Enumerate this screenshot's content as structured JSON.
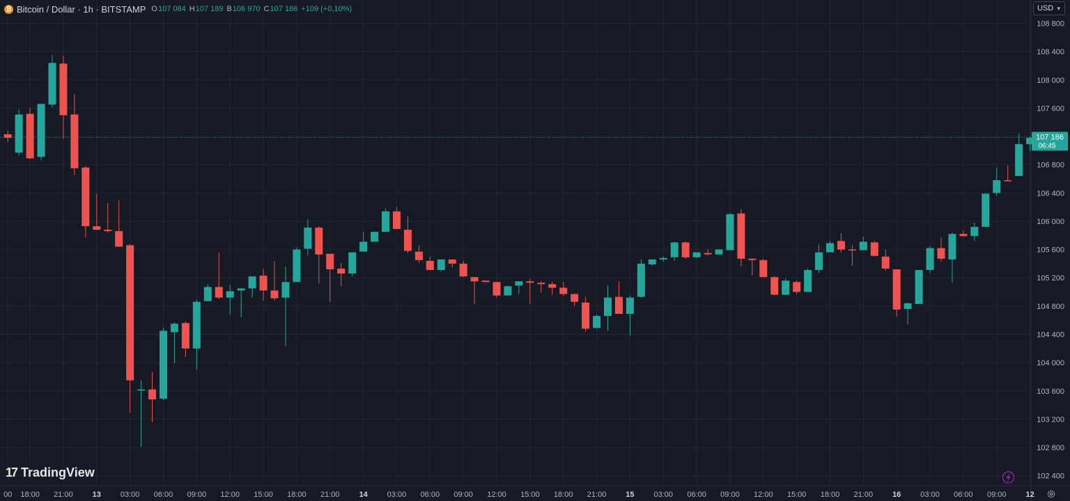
{
  "header": {
    "symbol": "Bitcoin / Dollar · 1h · BITSTAMP",
    "coin_icon": "bitcoin-icon",
    "open_label": "O",
    "open": "107 084",
    "high_label": "H",
    "high": "107 189",
    "low_label": "B",
    "low": "106 970",
    "close_label": "C",
    "close": "107 186",
    "change": "+109 (+0,10%)"
  },
  "currency": {
    "label": "USD",
    "icon": "chevron-down-icon"
  },
  "logo": {
    "mark": "17",
    "text": "TradingView"
  },
  "price_badge": {
    "price": "107 186",
    "countdown": "06:45"
  },
  "icons": {
    "lightning": "lightning-icon",
    "settings": "gear-icon"
  },
  "colors": {
    "background": "#161a25",
    "up": "#26a69a",
    "down": "#ef5350",
    "text": "#b2b5be",
    "grid": "#232733"
  },
  "chart_data": {
    "type": "candlestick",
    "symbol": "Bitcoin / Dollar",
    "interval": "1h",
    "exchange": "BITSTAMP",
    "ylim": [
      102300,
      108900
    ],
    "y_ticks": [
      "102 400",
      "102 800",
      "103 200",
      "103 600",
      "104 000",
      "104 400",
      "104 800",
      "105 200",
      "105 600",
      "106 000",
      "106 400",
      "106 800",
      "107 200",
      "107 600",
      "108 000",
      "108 400",
      "108 800"
    ],
    "x_ticks": [
      {
        "label": "00",
        "i": 0
      },
      {
        "label": "18:00",
        "i": 2
      },
      {
        "label": "21:00",
        "i": 5
      },
      {
        "label": "13",
        "i": 8
      },
      {
        "label": "03:00",
        "i": 11
      },
      {
        "label": "06:00",
        "i": 14
      },
      {
        "label": "09:00",
        "i": 17
      },
      {
        "label": "12:00",
        "i": 20
      },
      {
        "label": "15:00",
        "i": 23
      },
      {
        "label": "18:00",
        "i": 26
      },
      {
        "label": "21:00",
        "i": 29
      },
      {
        "label": "14",
        "i": 32
      },
      {
        "label": "03:00",
        "i": 35
      },
      {
        "label": "06:00",
        "i": 38
      },
      {
        "label": "09:00",
        "i": 41
      },
      {
        "label": "12:00",
        "i": 44
      },
      {
        "label": "15:00",
        "i": 47
      },
      {
        "label": "18:00",
        "i": 50
      },
      {
        "label": "21:00",
        "i": 53
      },
      {
        "label": "15",
        "i": 56
      },
      {
        "label": "03:00",
        "i": 59
      },
      {
        "label": "06:00",
        "i": 62
      },
      {
        "label": "09:00",
        "i": 65
      },
      {
        "label": "12:00",
        "i": 68
      },
      {
        "label": "15:00",
        "i": 71
      },
      {
        "label": "18:00",
        "i": 74
      },
      {
        "label": "21:00",
        "i": 77
      },
      {
        "label": "16",
        "i": 80
      },
      {
        "label": "03:00",
        "i": 83
      },
      {
        "label": "06:00",
        "i": 86
      },
      {
        "label": "09:00",
        "i": 89
      },
      {
        "label": "12",
        "i": 92
      }
    ],
    "last_price": 107186,
    "candles": [
      {
        "o": 107230,
        "h": 107280,
        "c": 107180,
        "l": 107120
      },
      {
        "o": 106970,
        "h": 107580,
        "c": 107510,
        "l": 106930
      },
      {
        "o": 107520,
        "h": 107600,
        "c": 106890,
        "l": 106880
      },
      {
        "o": 106910,
        "h": 107660,
        "c": 107660,
        "l": 106860
      },
      {
        "o": 107650,
        "h": 108350,
        "c": 108240,
        "l": 107610
      },
      {
        "o": 108230,
        "h": 108340,
        "c": 107500,
        "l": 107160
      },
      {
        "o": 107510,
        "h": 107800,
        "c": 106750,
        "l": 106650
      },
      {
        "o": 106760,
        "h": 106780,
        "c": 105930,
        "l": 105770
      },
      {
        "o": 105930,
        "h": 106390,
        "c": 105880,
        "l": 105870
      },
      {
        "o": 105880,
        "h": 106260,
        "c": 105860,
        "l": 105840
      },
      {
        "o": 105860,
        "h": 106300,
        "c": 105640,
        "l": 105640
      },
      {
        "o": 105660,
        "h": 105680,
        "c": 103750,
        "l": 103290
      },
      {
        "o": 103610,
        "h": 103750,
        "c": 103620,
        "l": 102810
      },
      {
        "o": 103620,
        "h": 103870,
        "c": 103480,
        "l": 103160
      },
      {
        "o": 103490,
        "h": 104490,
        "c": 104450,
        "l": 103470
      },
      {
        "o": 104430,
        "h": 104570,
        "c": 104550,
        "l": 103990
      },
      {
        "o": 104560,
        "h": 104580,
        "c": 104200,
        "l": 104080
      },
      {
        "o": 104200,
        "h": 104890,
        "c": 104860,
        "l": 103900
      },
      {
        "o": 104870,
        "h": 105110,
        "c": 105070,
        "l": 104870
      },
      {
        "o": 105070,
        "h": 105560,
        "c": 104920,
        "l": 104900
      },
      {
        "o": 104920,
        "h": 105100,
        "c": 105010,
        "l": 104680
      },
      {
        "o": 105020,
        "h": 105050,
        "c": 105050,
        "l": 104640
      },
      {
        "o": 105050,
        "h": 105210,
        "c": 105220,
        "l": 104920
      },
      {
        "o": 105230,
        "h": 105330,
        "c": 105020,
        "l": 104880
      },
      {
        "o": 105020,
        "h": 105440,
        "c": 104910,
        "l": 104880
      },
      {
        "o": 104920,
        "h": 105360,
        "c": 105140,
        "l": 104230
      },
      {
        "o": 105140,
        "h": 105630,
        "c": 105600,
        "l": 105150
      },
      {
        "o": 105610,
        "h": 106030,
        "c": 105910,
        "l": 105520
      },
      {
        "o": 105910,
        "h": 105930,
        "c": 105530,
        "l": 105120
      },
      {
        "o": 105540,
        "h": 105530,
        "c": 105320,
        "l": 104860
      },
      {
        "o": 105330,
        "h": 105410,
        "c": 105260,
        "l": 105080
      },
      {
        "o": 105260,
        "h": 105560,
        "c": 105560,
        "l": 105220
      },
      {
        "o": 105570,
        "h": 105850,
        "c": 105710,
        "l": 105570
      },
      {
        "o": 105710,
        "h": 105850,
        "c": 105850,
        "l": 105720
      },
      {
        "o": 105850,
        "h": 106180,
        "c": 106140,
        "l": 105870
      },
      {
        "o": 106140,
        "h": 106200,
        "c": 105890,
        "l": 105890
      },
      {
        "o": 105880,
        "h": 106070,
        "c": 105580,
        "l": 105550
      },
      {
        "o": 105570,
        "h": 105660,
        "c": 105450,
        "l": 105410
      },
      {
        "o": 105440,
        "h": 105500,
        "c": 105310,
        "l": 105310
      },
      {
        "o": 105310,
        "h": 105450,
        "c": 105460,
        "l": 105290
      },
      {
        "o": 105460,
        "h": 105450,
        "c": 105400,
        "l": 105350
      },
      {
        "o": 105400,
        "h": 105440,
        "c": 105220,
        "l": 105210
      },
      {
        "o": 105210,
        "h": 105210,
        "c": 105150,
        "l": 104830
      },
      {
        "o": 105160,
        "h": 105120,
        "c": 105140,
        "l": 105110
      },
      {
        "o": 105140,
        "h": 105140,
        "c": 104950,
        "l": 104920
      },
      {
        "o": 104950,
        "h": 105090,
        "c": 105080,
        "l": 104960
      },
      {
        "o": 105090,
        "h": 105110,
        "c": 105150,
        "l": 104970
      },
      {
        "o": 105150,
        "h": 105180,
        "c": 105130,
        "l": 104830
      },
      {
        "o": 105130,
        "h": 105150,
        "c": 105110,
        "l": 104990
      },
      {
        "o": 105110,
        "h": 105140,
        "c": 105060,
        "l": 104960
      },
      {
        "o": 105060,
        "h": 105140,
        "c": 104970,
        "l": 104940
      },
      {
        "o": 104970,
        "h": 104980,
        "c": 104860,
        "l": 104800
      },
      {
        "o": 104850,
        "h": 104930,
        "c": 104480,
        "l": 104440
      },
      {
        "o": 104490,
        "h": 104680,
        "c": 104660,
        "l": 104480
      },
      {
        "o": 104660,
        "h": 105090,
        "c": 104920,
        "l": 104450
      },
      {
        "o": 104930,
        "h": 105150,
        "c": 104690,
        "l": 104690
      },
      {
        "o": 104690,
        "h": 104950,
        "c": 104920,
        "l": 104380
      },
      {
        "o": 104930,
        "h": 105460,
        "c": 105400,
        "l": 104920
      },
      {
        "o": 105390,
        "h": 105450,
        "c": 105460,
        "l": 105370
      },
      {
        "o": 105460,
        "h": 105500,
        "c": 105480,
        "l": 105430
      },
      {
        "o": 105490,
        "h": 105710,
        "c": 105700,
        "l": 105440
      },
      {
        "o": 105700,
        "h": 105710,
        "c": 105490,
        "l": 105470
      },
      {
        "o": 105490,
        "h": 105560,
        "c": 105560,
        "l": 105480
      },
      {
        "o": 105550,
        "h": 105600,
        "c": 105530,
        "l": 105520
      },
      {
        "o": 105530,
        "h": 105610,
        "c": 105600,
        "l": 105540
      },
      {
        "o": 105590,
        "h": 106120,
        "c": 106100,
        "l": 105600
      },
      {
        "o": 106110,
        "h": 106170,
        "c": 105470,
        "l": 105360
      },
      {
        "o": 105470,
        "h": 105480,
        "c": 105450,
        "l": 105230
      },
      {
        "o": 105450,
        "h": 105470,
        "c": 105210,
        "l": 105220
      },
      {
        "o": 105210,
        "h": 105220,
        "c": 104960,
        "l": 104950
      },
      {
        "o": 104960,
        "h": 105190,
        "c": 105160,
        "l": 104960
      },
      {
        "o": 105140,
        "h": 105160,
        "c": 105000,
        "l": 104970
      },
      {
        "o": 105000,
        "h": 105330,
        "c": 105310,
        "l": 105020
      },
      {
        "o": 105310,
        "h": 105670,
        "c": 105560,
        "l": 105270
      },
      {
        "o": 105560,
        "h": 105720,
        "c": 105690,
        "l": 105590
      },
      {
        "o": 105720,
        "h": 105830,
        "c": 105600,
        "l": 105560
      },
      {
        "o": 105600,
        "h": 105660,
        "c": 105590,
        "l": 105370
      },
      {
        "o": 105590,
        "h": 105780,
        "c": 105710,
        "l": 105590
      },
      {
        "o": 105700,
        "h": 105720,
        "c": 105510,
        "l": 105500
      },
      {
        "o": 105500,
        "h": 105600,
        "c": 105330,
        "l": 105300
      },
      {
        "o": 105320,
        "h": 105320,
        "c": 104750,
        "l": 104650
      },
      {
        "o": 104760,
        "h": 104850,
        "c": 104840,
        "l": 104540
      },
      {
        "o": 104830,
        "h": 105310,
        "c": 105310,
        "l": 104830
      },
      {
        "o": 105310,
        "h": 105650,
        "c": 105620,
        "l": 105270
      },
      {
        "o": 105620,
        "h": 105770,
        "c": 105470,
        "l": 105430
      },
      {
        "o": 105460,
        "h": 105840,
        "c": 105820,
        "l": 105130
      },
      {
        "o": 105820,
        "h": 105870,
        "c": 105790,
        "l": 105780
      },
      {
        "o": 105790,
        "h": 105980,
        "c": 105920,
        "l": 105720
      },
      {
        "o": 105920,
        "h": 106400,
        "c": 106390,
        "l": 105920
      },
      {
        "o": 106400,
        "h": 106760,
        "c": 106580,
        "l": 106360
      },
      {
        "o": 106580,
        "h": 106790,
        "c": 106570,
        "l": 106570
      },
      {
        "o": 106640,
        "h": 107240,
        "c": 107090,
        "l": 106640
      },
      {
        "o": 107090,
        "h": 107200,
        "c": 107180,
        "l": 106990
      }
    ]
  }
}
